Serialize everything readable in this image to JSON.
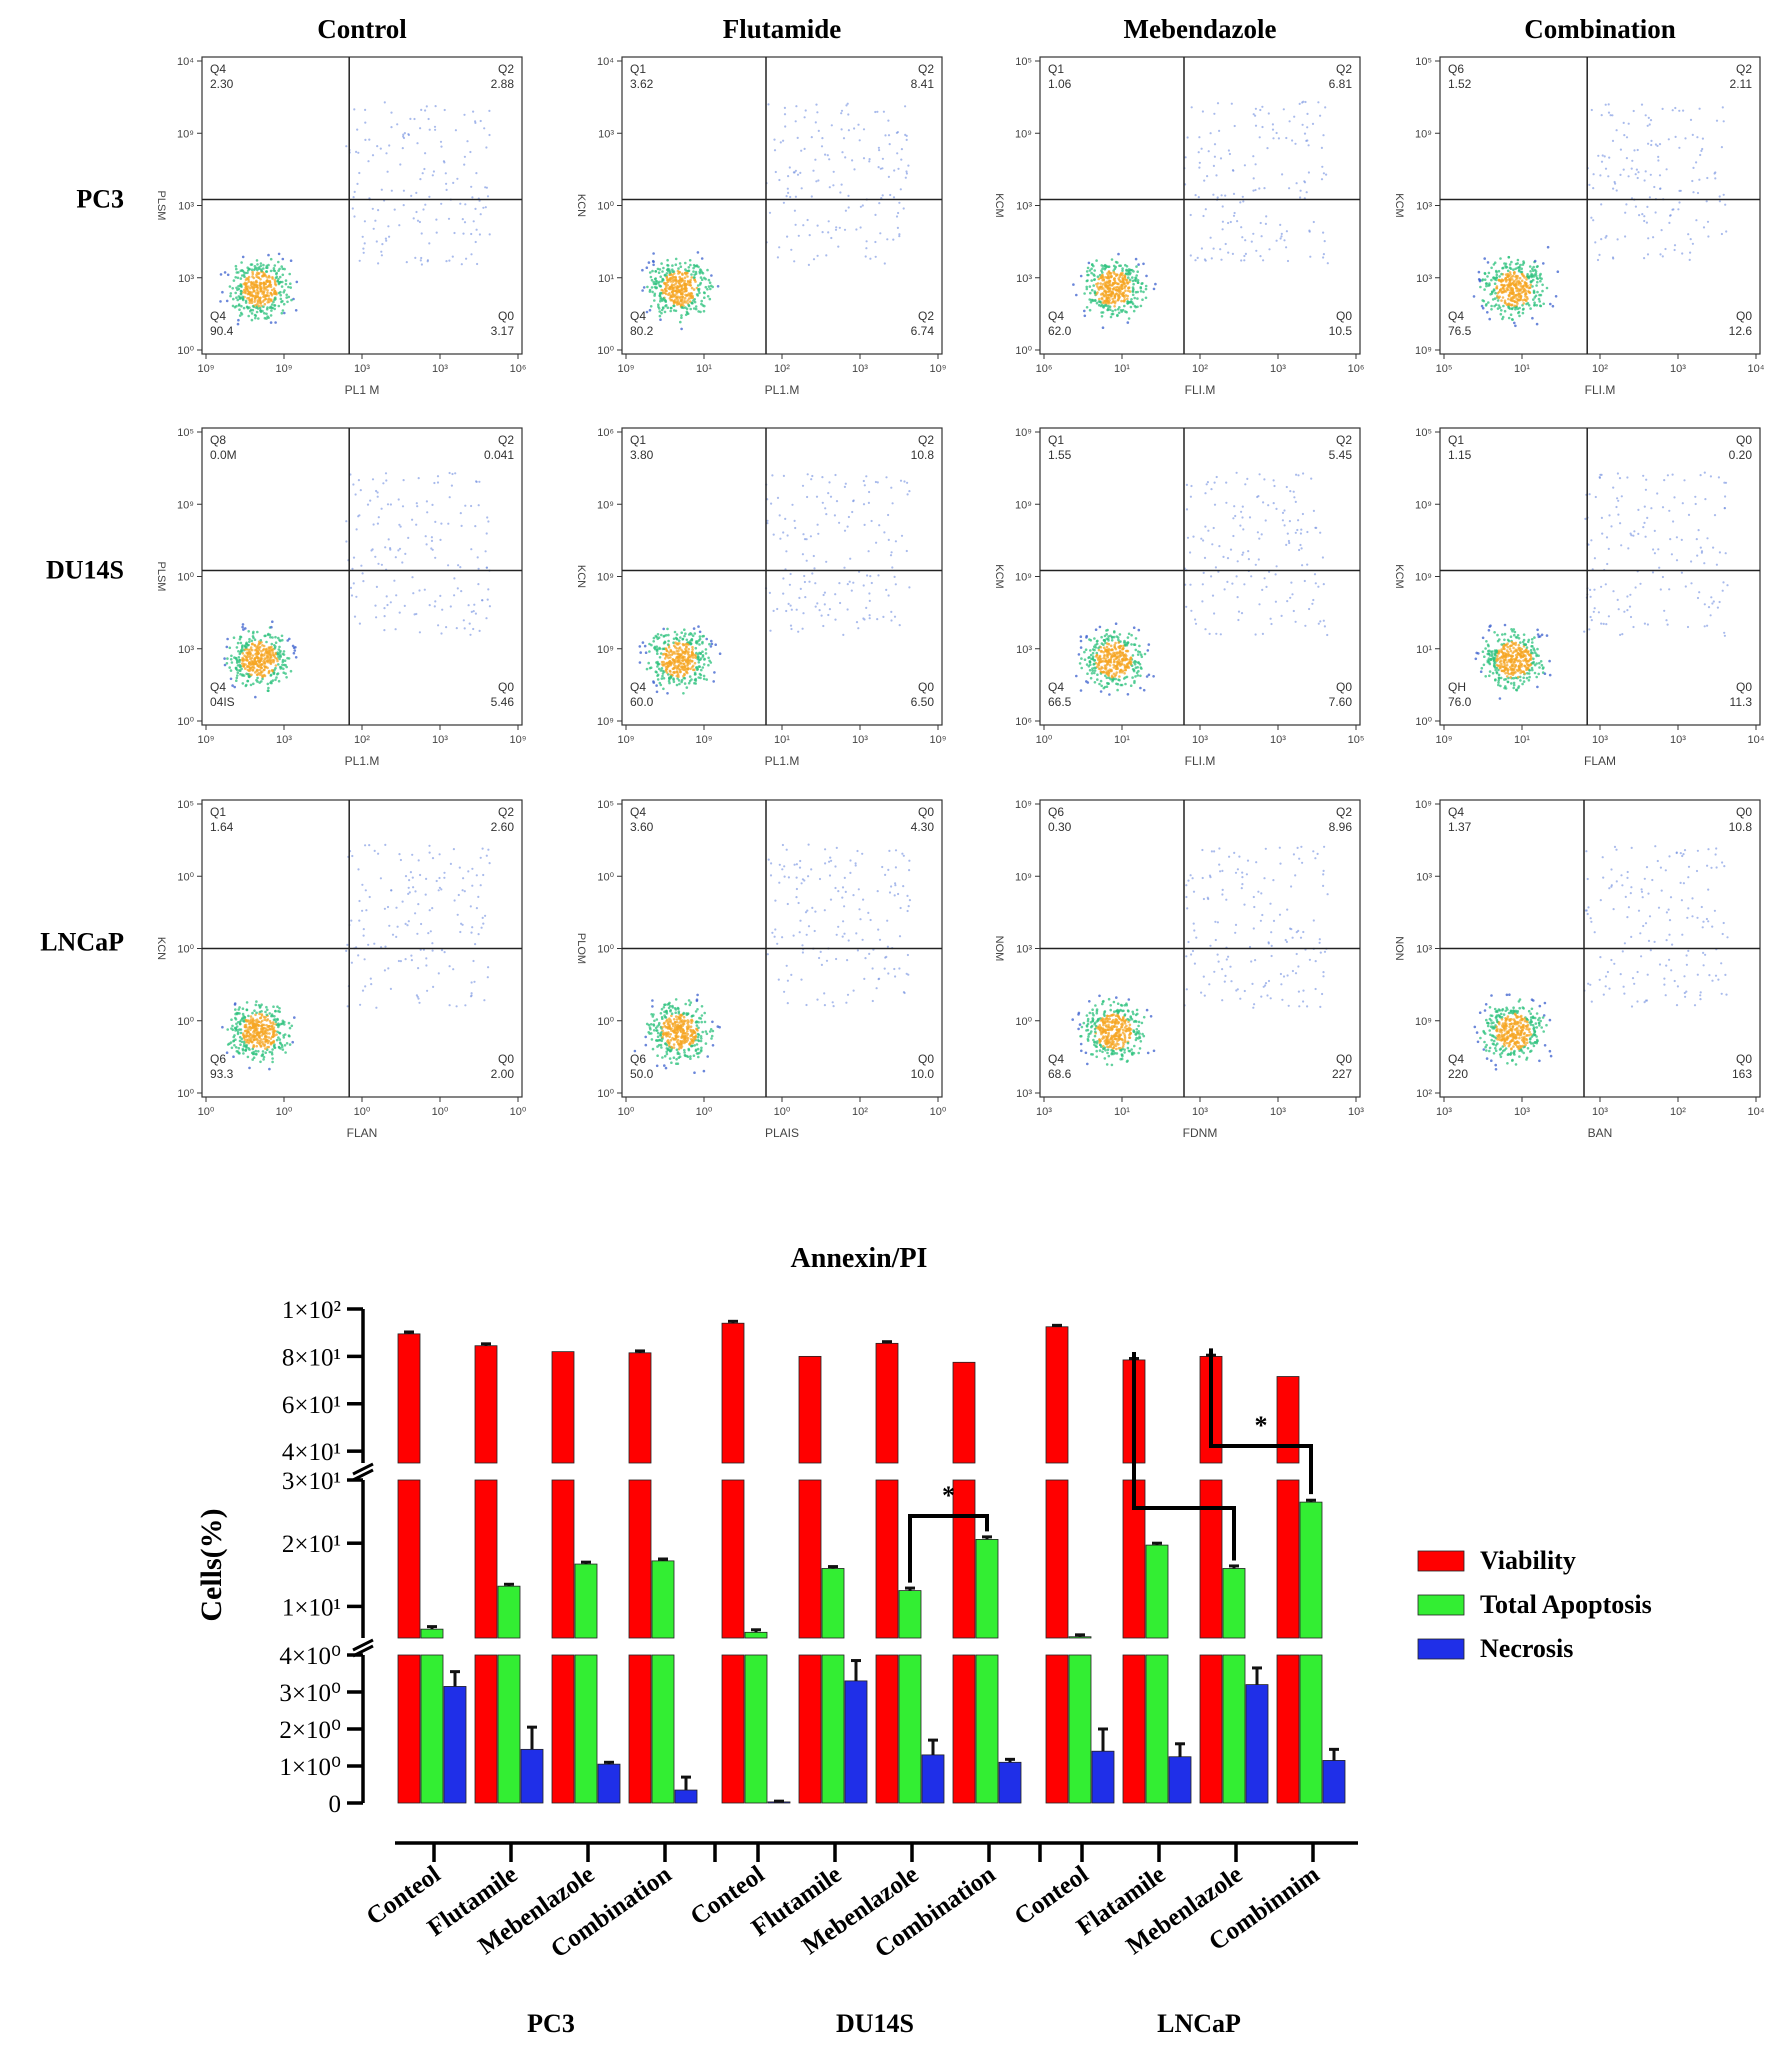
{
  "flow": {
    "column_titles": [
      "Control",
      "Flutamide",
      "Mebendazole",
      "Combination"
    ],
    "row_labels": [
      "PC3",
      "DU14S",
      "LNCaP"
    ],
    "panels": [
      [
        {
          "y_label": "PLSM",
          "x_label": "PL1 M",
          "y_ticks": [
            "10⁰",
            "10³",
            "10³",
            "10⁹",
            "10⁴"
          ],
          "x_ticks": [
            "10⁹",
            "10⁹",
            "10³",
            "10³",
            "10⁶"
          ],
          "q_ul": [
            "Q4",
            "2.30"
          ],
          "q_ur": [
            "Q2",
            "2.88"
          ],
          "q_ll": [
            "Q4",
            "90.4"
          ],
          "q_lr": [
            "Q0",
            "3.17"
          ],
          "split_x": 0.46,
          "split_y": 0.48
        },
        {
          "y_label": "KCN",
          "x_label": "PL1.M",
          "y_ticks": [
            "10⁰",
            "10¹",
            "10⁰",
            "10³",
            "10⁴"
          ],
          "x_ticks": [
            "10⁹",
            "10¹",
            "10²",
            "10³",
            "10⁹"
          ],
          "q_ul": [
            "Q1",
            "3.62"
          ],
          "q_ur": [
            "Q2",
            "8.41"
          ],
          "q_ll": [
            "Q4",
            "80.2"
          ],
          "q_lr": [
            "Q2",
            "6.74"
          ],
          "split_x": 0.45,
          "split_y": 0.48
        },
        {
          "y_label": "KCM",
          "x_label": "FLI.M",
          "y_ticks": [
            "10⁰",
            "10³",
            "10³",
            "10⁹",
            "10⁵"
          ],
          "x_ticks": [
            "10⁶",
            "10¹",
            "10²",
            "10³",
            "10⁶"
          ],
          "q_ul": [
            "Q1",
            "1.06"
          ],
          "q_ur": [
            "Q2",
            "6.81"
          ],
          "q_ll": [
            "Q4",
            "62.0"
          ],
          "q_lr": [
            "Q0",
            "10.5"
          ],
          "split_x": 0.45,
          "split_y": 0.48
        },
        {
          "y_label": "KCM",
          "x_label": "FLI.M",
          "y_ticks": [
            "10⁹",
            "10³",
            "10³",
            "10⁹",
            "10⁵"
          ],
          "x_ticks": [
            "10⁵",
            "10¹",
            "10²",
            "10³",
            "10⁴"
          ],
          "q_ul": [
            "Q6",
            "1.52"
          ],
          "q_ur": [
            "Q2",
            "2.11"
          ],
          "q_ll": [
            "Q4",
            "76.5"
          ],
          "q_lr": [
            "Q0",
            "12.6"
          ],
          "split_x": 0.46,
          "split_y": 0.48
        }
      ],
      [
        {
          "y_label": "PLSM",
          "x_label": "PL1.M",
          "y_ticks": [
            "10⁰",
            "10³",
            "10⁰",
            "10⁹",
            "10⁵"
          ],
          "x_ticks": [
            "10⁹",
            "10³",
            "10²",
            "10³",
            "10⁹"
          ],
          "q_ul": [
            "Q8",
            "0.0M"
          ],
          "q_ur": [
            "Q2",
            "0.041"
          ],
          "q_ll": [
            "Q4",
            "04IS"
          ],
          "q_lr": [
            "Q0",
            "5.46"
          ],
          "split_x": 0.46,
          "split_y": 0.48
        },
        {
          "y_label": "KCN",
          "x_label": "PL1.M",
          "y_ticks": [
            "10⁹",
            "10⁹",
            "10⁹",
            "10⁹",
            "10⁶"
          ],
          "x_ticks": [
            "10⁹",
            "10⁹",
            "10¹",
            "10³",
            "10⁹"
          ],
          "q_ul": [
            "Q1",
            "3.80"
          ],
          "q_ur": [
            "Q2",
            "10.8"
          ],
          "q_ll": [
            "Q4",
            "60.0"
          ],
          "q_lr": [
            "Q0",
            "6.50"
          ],
          "split_x": 0.45,
          "split_y": 0.48
        },
        {
          "y_label": "KCM",
          "x_label": "FLI.M",
          "y_ticks": [
            "10⁶",
            "10³",
            "10⁹",
            "10⁹",
            "10⁹"
          ],
          "x_ticks": [
            "10⁰",
            "10¹",
            "10³",
            "10³",
            "10⁵"
          ],
          "q_ul": [
            "Q1",
            "1.55"
          ],
          "q_ur": [
            "Q2",
            "5.45"
          ],
          "q_ll": [
            "Q4",
            "66.5"
          ],
          "q_lr": [
            "Q0",
            "7.60"
          ],
          "split_x": 0.45,
          "split_y": 0.48
        },
        {
          "y_label": "KCM",
          "x_label": "FLAM",
          "y_ticks": [
            "10⁰",
            "10¹",
            "10⁹",
            "10⁹",
            "10⁵"
          ],
          "x_ticks": [
            "10⁹",
            "10¹",
            "10³",
            "10³",
            "10⁴"
          ],
          "q_ul": [
            "Q1",
            "1.15"
          ],
          "q_ur": [
            "Q0",
            "0.20"
          ],
          "q_ll": [
            "QH",
            "76.0"
          ],
          "q_lr": [
            "Q0",
            "11.3"
          ],
          "split_x": 0.46,
          "split_y": 0.48
        }
      ],
      [
        {
          "y_label": "KCN",
          "x_label": "FLAN",
          "y_ticks": [
            "10⁰",
            "10⁰",
            "10⁰",
            "10⁰",
            "10⁵"
          ],
          "x_ticks": [
            "10⁰",
            "10⁰",
            "10⁰",
            "10⁰",
            "10⁰"
          ],
          "q_ul": [
            "Q1",
            "1.64"
          ],
          "q_ur": [
            "Q2",
            "2.60"
          ],
          "q_ll": [
            "Q6",
            "93.3"
          ],
          "q_lr": [
            "Q0",
            "2.00"
          ],
          "split_x": 0.46,
          "split_y": 0.5
        },
        {
          "y_label": "PLOM",
          "x_label": "PLAIS",
          "y_ticks": [
            "10⁰",
            "10⁰",
            "10⁰",
            "10⁰",
            "10⁵"
          ],
          "x_ticks": [
            "10⁰",
            "10⁰",
            "10⁰",
            "10²",
            "10⁰"
          ],
          "q_ul": [
            "Q4",
            "3.60"
          ],
          "q_ur": [
            "Q0",
            "4.30"
          ],
          "q_ll": [
            "Q6",
            "50.0"
          ],
          "q_lr": [
            "Q0",
            "10.0"
          ],
          "split_x": 0.45,
          "split_y": 0.5
        },
        {
          "y_label": "NOM",
          "x_label": "FDNM",
          "y_ticks": [
            "10³",
            "10⁰",
            "10³",
            "10⁹",
            "10⁹"
          ],
          "x_ticks": [
            "10³",
            "10¹",
            "10³",
            "10³",
            "10³"
          ],
          "q_ul": [
            "Q6",
            "0.30"
          ],
          "q_ur": [
            "Q2",
            "8.96"
          ],
          "q_ll": [
            "Q4",
            "68.6"
          ],
          "q_lr": [
            "Q0",
            "227"
          ],
          "split_x": 0.45,
          "split_y": 0.5
        },
        {
          "y_label": "NON",
          "x_label": "BAN",
          "y_ticks": [
            "10²",
            "10⁹",
            "10³",
            "10³",
            "10⁹"
          ],
          "x_ticks": [
            "10³",
            "10³",
            "10³",
            "10²",
            "10⁴"
          ],
          "q_ul": [
            "Q4",
            "1.37"
          ],
          "q_ur": [
            "Q0",
            "10.8"
          ],
          "q_ll": [
            "Q4",
            "220"
          ],
          "q_lr": [
            "Q0",
            "163"
          ],
          "split_x": 0.45,
          "split_y": 0.5
        }
      ]
    ]
  },
  "chart_data": {
    "type": "bar",
    "title": "Annexin/PI",
    "ylabel": "Cells(%)",
    "xlabel": "",
    "segments": [
      {
        "range": [
          0,
          4
        ],
        "ticks": [
          0,
          1,
          2,
          3,
          4
        ],
        "tick_labels": [
          "0",
          "1×10⁰",
          "2×10⁰",
          "3×10⁰",
          "4×10⁰"
        ]
      },
      {
        "range": [
          5,
          30
        ],
        "ticks": [
          10,
          20,
          30
        ],
        "tick_labels": [
          "1×10¹",
          "2×10¹",
          "3×10¹"
        ]
      },
      {
        "range": [
          35,
          100
        ],
        "ticks": [
          40,
          60,
          80,
          100
        ],
        "tick_labels": [
          "4×10¹",
          "6×10¹",
          "8×10¹",
          "1×10²"
        ]
      }
    ],
    "groups": [
      {
        "name": "PC3",
        "categories": [
          "Control",
          "Flutamide",
          "Mebendazole",
          "Combination"
        ]
      },
      {
        "name": "DU14S",
        "categories": [
          "Control",
          "Flutamide",
          "Mebendazole",
          "Combination"
        ]
      },
      {
        "name": "LNCaP",
        "categories": [
          "Control",
          "Flutamide",
          "Mebendazole",
          "Combination"
        ]
      }
    ],
    "tick_text": [
      "Conteol",
      "Flutamile",
      "Mebenlazole",
      "Combination",
      "Conteol",
      "Flutamile",
      "Mebenlazole",
      "Combination",
      "Conteol",
      "Flatamile",
      "Mebenlazole",
      "Combinnim"
    ],
    "series": [
      {
        "name": "Viability",
        "color": "#ff0000",
        "values": [
          89.5,
          84.5,
          82,
          81.5,
          94,
          80,
          85.5,
          77.5,
          92.5,
          78.5,
          80,
          71.5
        ],
        "errors": [
          0.8,
          0.8,
          0,
          0.8,
          0.8,
          0,
          0.7,
          0,
          0.6,
          0.6,
          0.5,
          0
        ]
      },
      {
        "name": "Total Apoptosis",
        "color": "#33ee33",
        "values": [
          6.4,
          13.2,
          16.7,
          17.2,
          5.9,
          16.0,
          12.5,
          20.6,
          5.2,
          19.7,
          16.0,
          26.5
        ],
        "errors": [
          0.4,
          0.3,
          0.3,
          0.3,
          0.4,
          0.3,
          0.4,
          0.4,
          0.3,
          0.3,
          0.4,
          0.3
        ]
      },
      {
        "name": "Necrosis",
        "color": "#1f2fe8",
        "values": [
          3.15,
          1.45,
          1.05,
          0.35,
          0.03,
          3.3,
          1.3,
          1.1,
          1.4,
          1.25,
          3.2,
          1.15
        ],
        "errors": [
          0.4,
          0.6,
          0.05,
          0.35,
          0.02,
          0.55,
          0.4,
          0.08,
          0.6,
          0.35,
          0.45,
          0.3
        ]
      }
    ],
    "significance": [
      {
        "from": [
          6,
          "Total Apoptosis"
        ],
        "to": [
          7,
          "Total Apoptosis"
        ],
        "label": "*"
      },
      {
        "from": [
          9,
          "Viability"
        ],
        "to": [
          10,
          "Total Apoptosis"
        ],
        "label": ""
      },
      {
        "from": [
          10,
          "Viability"
        ],
        "to": [
          11,
          "Total Apoptosis"
        ],
        "label": "*"
      }
    ],
    "legend_position": "right"
  }
}
